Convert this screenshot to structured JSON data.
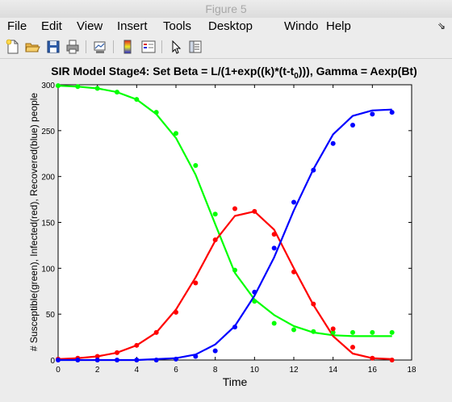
{
  "window": {
    "title": "Figure 5"
  },
  "menu": {
    "items": [
      {
        "label": "File"
      },
      {
        "label": "Edit"
      },
      {
        "label": "View"
      },
      {
        "label": "Insert"
      },
      {
        "label": "Tools"
      },
      {
        "label": "Desktop"
      },
      {
        "label": "Windo"
      },
      {
        "label": "Help"
      }
    ],
    "overflow_icon": "double-arrow-icon"
  },
  "toolbar": {
    "icons": [
      "new-figure-icon",
      "open-file-icon",
      "save-icon",
      "print-icon",
      "link-plot-icon",
      "colorbar-icon",
      "legend-icon",
      "pointer-icon",
      "property-editor-icon"
    ]
  },
  "colors": {
    "susceptible": "#00ff00",
    "infected": "#ff0000",
    "recovered": "#0000ff"
  },
  "chart_data": {
    "type": "line",
    "title_main": "SIR Model Stage4: Set Beta = L/(1+exp((k)*(t-t",
    "title_sub": "0",
    "title_tail": "))), Gamma = Aexp(Bt)",
    "xlabel": "Time",
    "ylabel": "# Susceptible(green), Infected(red), Recovered(blue) people",
    "xlim": [
      0,
      18
    ],
    "ylim": [
      0,
      300
    ],
    "xticks": [
      "0",
      "2",
      "4",
      "6",
      "8",
      "10",
      "12",
      "14",
      "16",
      "18"
    ],
    "yticks": [
      "0",
      "50",
      "100",
      "150",
      "200",
      "250",
      "300"
    ],
    "grid": false,
    "series": [
      {
        "color": "#00ff00",
        "points_x": [
          0,
          1,
          2,
          3,
          4,
          5,
          6,
          7,
          8,
          9,
          10,
          11,
          12,
          13,
          14,
          15,
          16,
          17
        ],
        "points_y": [
          299,
          298,
          296,
          292,
          284,
          270,
          247,
          212,
          159,
          98,
          64,
          40,
          33,
          31,
          30,
          30,
          30,
          30
        ],
        "line_x": [
          0,
          1,
          2,
          3,
          4,
          5,
          6,
          7,
          8,
          9,
          10,
          11,
          12,
          13,
          14,
          15,
          16,
          17
        ],
        "line_y": [
          299,
          298,
          296,
          292,
          284,
          268,
          242,
          202,
          148,
          95,
          66,
          49,
          37,
          30,
          27,
          26,
          26,
          26
        ]
      },
      {
        "color": "#ff0000",
        "points_x": [
          0,
          1,
          2,
          3,
          4,
          5,
          6,
          7,
          8,
          9,
          10,
          11,
          12,
          13,
          14,
          15,
          16,
          17
        ],
        "points_y": [
          1,
          2,
          4,
          8,
          16,
          30,
          52,
          84,
          131,
          165,
          162,
          137,
          96,
          61,
          34,
          14,
          2,
          0
        ],
        "line_x": [
          0,
          1,
          2,
          3,
          4,
          5,
          6,
          7,
          8,
          9,
          10,
          11,
          12,
          13,
          14,
          15,
          16,
          17
        ],
        "line_y": [
          1,
          2,
          4,
          8,
          16,
          30,
          55,
          90,
          130,
          157,
          162,
          142,
          100,
          60,
          26,
          7,
          2,
          1
        ]
      },
      {
        "color": "#0000ff",
        "points_x": [
          0,
          1,
          2,
          3,
          4,
          5,
          6,
          7,
          8,
          9,
          10,
          11,
          12,
          13,
          14,
          15,
          16,
          17
        ],
        "points_y": [
          0,
          0,
          0,
          0,
          0,
          0,
          1,
          4,
          10,
          36,
          74,
          122,
          172,
          207,
          236,
          256,
          268,
          270
        ],
        "line_x": [
          0,
          1,
          2,
          3,
          4,
          5,
          6,
          7,
          8,
          9,
          10,
          11,
          12,
          13,
          14,
          15,
          16,
          17
        ],
        "line_y": [
          0,
          0,
          0,
          0,
          0,
          1,
          2,
          6,
          17,
          37,
          70,
          112,
          163,
          208,
          246,
          266,
          272,
          273
        ]
      }
    ]
  }
}
